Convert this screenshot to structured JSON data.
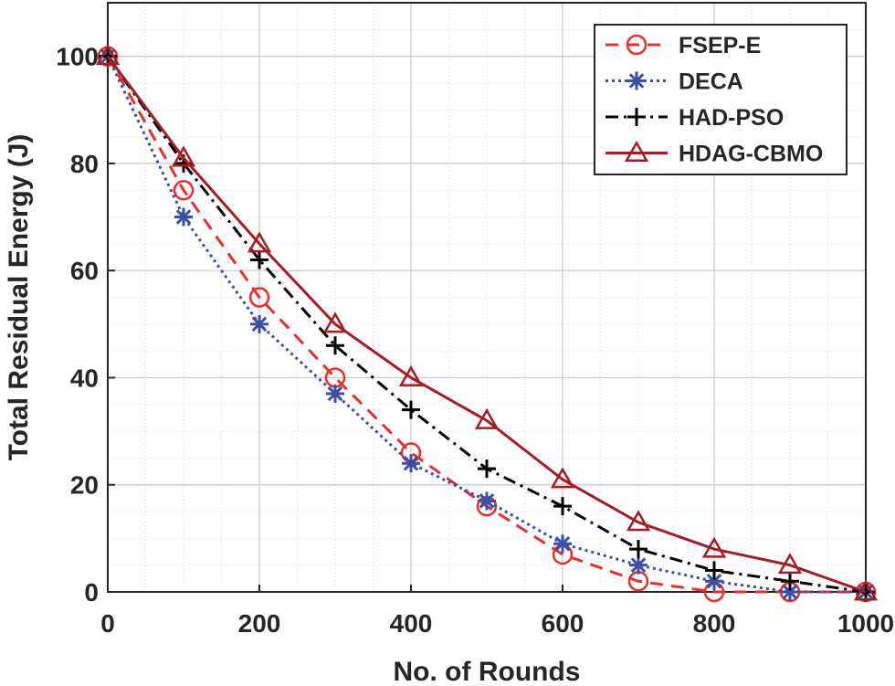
{
  "chart_data": {
    "type": "line",
    "title": "",
    "xlabel": "No. of Rounds",
    "ylabel": "Total Residual Energy (J)",
    "xlim": [
      0,
      1000
    ],
    "ylim": [
      0,
      110
    ],
    "x_ticks": [
      0,
      200,
      400,
      600,
      800,
      1000
    ],
    "y_ticks": [
      0,
      20,
      40,
      60,
      80,
      100
    ],
    "grid": true,
    "minor_grid": true,
    "legend_position": "top-right",
    "x": [
      0,
      100,
      200,
      300,
      400,
      500,
      600,
      700,
      800,
      900,
      1000
    ],
    "series": [
      {
        "name": "FSEP-E",
        "color": "#e8302a",
        "dash": "dashed",
        "marker": "circle",
        "values": [
          100,
          75,
          55,
          40,
          26,
          16,
          7,
          2,
          0,
          0,
          0
        ]
      },
      {
        "name": "DECA",
        "color": "#3a4fa8",
        "dash": "dotted",
        "marker": "asterisk",
        "values": [
          100,
          70,
          50,
          37,
          24,
          17,
          9,
          5,
          2,
          0,
          0
        ]
      },
      {
        "name": "HAD-PSO",
        "color": "#000000",
        "dash": "dashdot",
        "marker": "plus",
        "values": [
          100,
          80,
          62,
          46,
          34,
          23,
          16,
          8,
          4,
          2,
          0
        ]
      },
      {
        "name": "HDAG-CBMO",
        "color": "#a51c24",
        "dash": "solid",
        "marker": "triangle",
        "values": [
          100,
          81,
          65,
          50,
          40,
          32,
          21,
          13,
          8,
          5,
          0
        ]
      }
    ]
  }
}
